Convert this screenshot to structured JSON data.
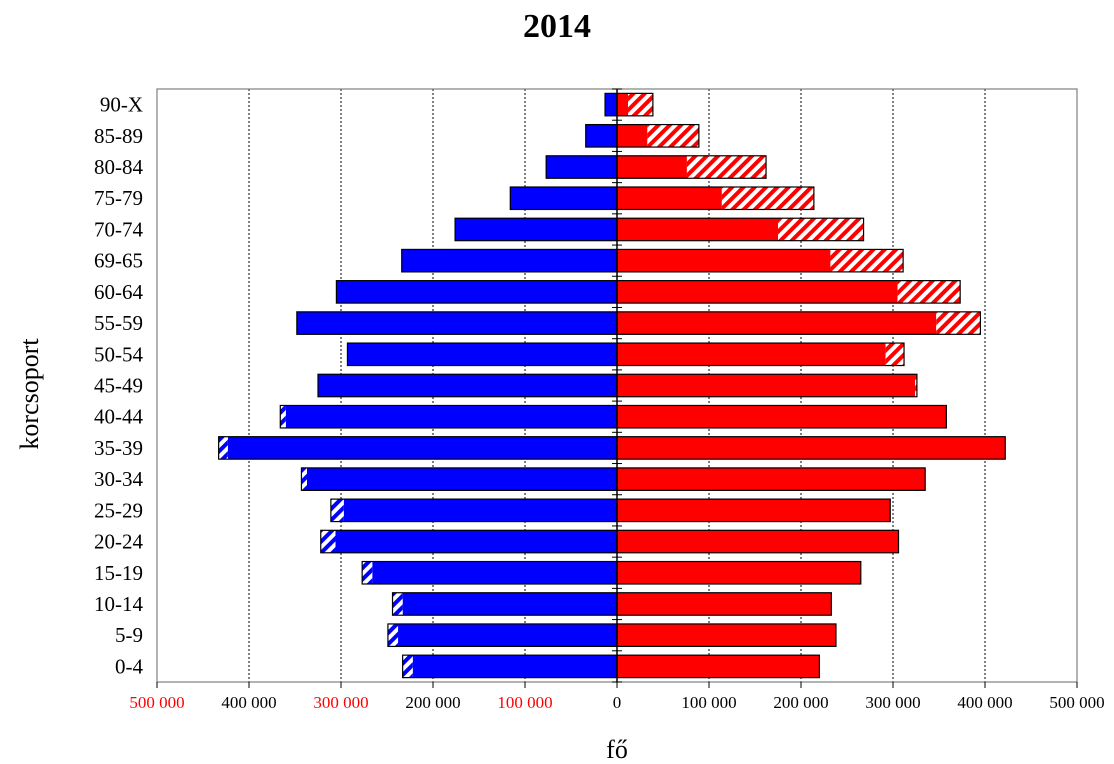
{
  "chart_data": {
    "type": "bar",
    "orientation": "horizontal",
    "title": "2014",
    "xlabel": "fő",
    "ylabel": "korcsoport",
    "xlim": [
      -500000,
      500000
    ],
    "x_ticks": [
      {
        "value": -500000,
        "label": "500 000",
        "color": "#ff0000"
      },
      {
        "value": -400000,
        "label": "400 000",
        "color": "#000000"
      },
      {
        "value": -300000,
        "label": "300 000",
        "color": "#ff0000"
      },
      {
        "value": -200000,
        "label": "200 000",
        "color": "#000000"
      },
      {
        "value": -100000,
        "label": "100 000",
        "color": "#ff0000"
      },
      {
        "value": 0,
        "label": "0",
        "color": "#000000"
      },
      {
        "value": 100000,
        "label": "100 000",
        "color": "#000000"
      },
      {
        "value": 200000,
        "label": "200 000",
        "color": "#000000"
      },
      {
        "value": 300000,
        "label": "300 000",
        "color": "#000000"
      },
      {
        "value": 400000,
        "label": "400 000",
        "color": "#000000"
      },
      {
        "value": 500000,
        "label": "500 000",
        "color": "#000000"
      }
    ],
    "categories": [
      "0-4",
      "5-9",
      "10-14",
      "15-19",
      "20-24",
      "25-29",
      "30-34",
      "35-39",
      "40-44",
      "45-49",
      "50-54",
      "55-59",
      "60-64",
      "69-65",
      "70-74",
      "75-79",
      "80-84",
      "85-89",
      "90-X"
    ],
    "series": [
      {
        "side": "left",
        "color": "#0000ff",
        "kind": "solid",
        "values": [
          222000,
          238000,
          233000,
          266000,
          306000,
          297000,
          337000,
          423000,
          360000,
          325000,
          293000,
          348000,
          305000,
          234000,
          176000,
          116000,
          77000,
          34000,
          13000
        ]
      },
      {
        "side": "left",
        "color": "#0000ff",
        "kind": "hatched",
        "values": [
          11000,
          11000,
          11000,
          11000,
          16000,
          14000,
          6000,
          10000,
          6000,
          0,
          0,
          0,
          0,
          0,
          0,
          0,
          0,
          0,
          0
        ]
      },
      {
        "side": "right",
        "color": "#ff0000",
        "kind": "solid",
        "values": [
          220000,
          238000,
          233000,
          265000,
          306000,
          297000,
          335000,
          422000,
          358000,
          324000,
          292000,
          347000,
          305000,
          232000,
          175000,
          114000,
          76000,
          33000,
          12000
        ]
      },
      {
        "side": "right",
        "color": "#ff0000",
        "kind": "hatched",
        "values": [
          0,
          0,
          0,
          0,
          0,
          0,
          0,
          0,
          0,
          2000,
          20000,
          48000,
          68000,
          79000,
          93000,
          100000,
          86000,
          56000,
          27000
        ]
      }
    ],
    "grid": {
      "vertical": true,
      "style": "dotted"
    },
    "colors": {
      "left": "#0000ff",
      "right": "#ff0000",
      "frame": "#000000",
      "grid": "#000000"
    }
  }
}
